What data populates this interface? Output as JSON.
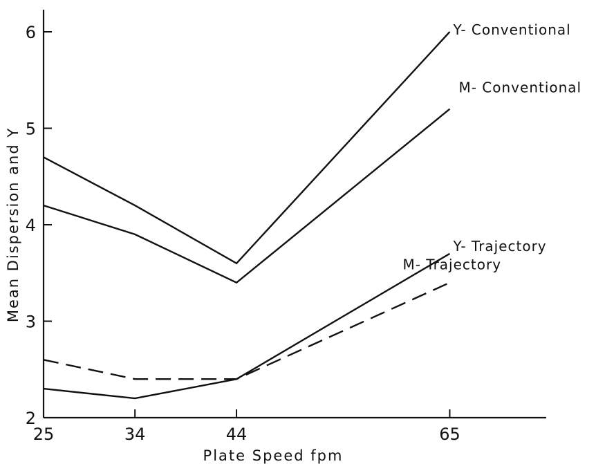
{
  "chart_data": {
    "type": "line",
    "title": "",
    "xlabel": "Plate Speed fpm",
    "ylabel": "Mean Dispersion and Y",
    "x": [
      25,
      34,
      44,
      65
    ],
    "x_ticks": [
      25,
      34,
      44,
      65
    ],
    "x_tick_labels": [
      "25",
      "34",
      "44",
      "65"
    ],
    "y_ticks": [
      2,
      3,
      4,
      5,
      6
    ],
    "y_tick_labels": [
      "2",
      "3",
      "4",
      "5",
      "6"
    ],
    "xlim": [
      25,
      74.5
    ],
    "ylim": [
      2,
      6.3
    ],
    "grid": false,
    "legend": "none (series labeled directly at right end of lines)",
    "series": [
      {
        "name": "Y- Conventional",
        "values": [
          4.7,
          4.2,
          3.6,
          6.0
        ],
        "dash": "solid"
      },
      {
        "name": "M- Conventional",
        "values": [
          4.2,
          3.9,
          3.4,
          5.2
        ],
        "dash": "solid"
      },
      {
        "name": "Y- Trajectory",
        "values": [
          2.3,
          2.2,
          2.4,
          3.7
        ],
        "dash": "solid"
      },
      {
        "name": "M- Trajectory",
        "values": [
          2.6,
          2.4,
          2.4,
          3.4
        ],
        "dash": "dashed"
      }
    ]
  }
}
